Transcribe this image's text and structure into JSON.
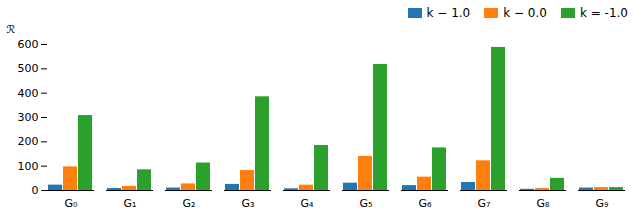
{
  "chart_data": {
    "type": "bar",
    "ylabel": "ℛ",
    "categories": [
      "G₀",
      "G₁",
      "G₂",
      "G₃",
      "G₄",
      "G₅",
      "G₆",
      "G₇",
      "G₈",
      "G₉"
    ],
    "series": [
      {
        "name": "k − 1.0",
        "color": "#1f77b4",
        "values": [
          22,
          8,
          10,
          25,
          7,
          30,
          20,
          33,
          5,
          10
        ]
      },
      {
        "name": "k − 0.0",
        "color": "#ff7f0e",
        "values": [
          97,
          17,
          27,
          82,
          22,
          140,
          55,
          122,
          8,
          12
        ]
      },
      {
        "name": "k = -1.0",
        "color": "#2ca02c",
        "values": [
          308,
          85,
          113,
          385,
          185,
          518,
          175,
          588,
          50,
          12
        ]
      }
    ],
    "ylim": [
      0,
      600
    ],
    "yticks": [
      0,
      100,
      200,
      300,
      400,
      500,
      600
    ],
    "legend": "upper right"
  }
}
